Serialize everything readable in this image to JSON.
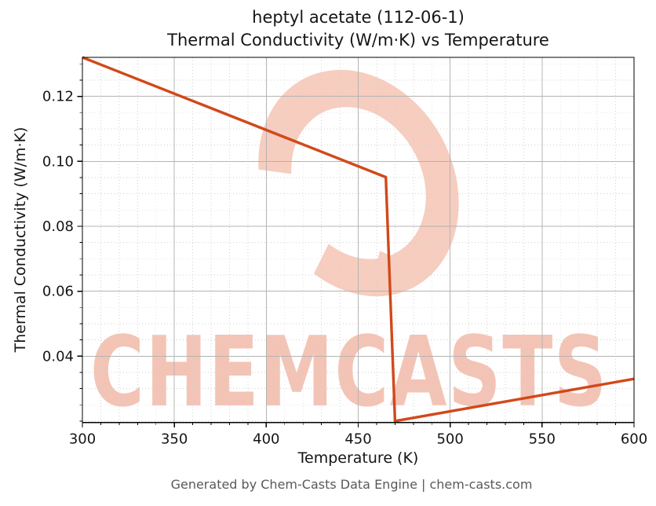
{
  "chart_data": {
    "type": "line",
    "title_line1": "heptyl acetate (112-06-1)",
    "title_line2": "Thermal Conductivity (W/m·K) vs Temperature",
    "xlabel": "Temperature (K)",
    "ylabel": "Thermal Conductivity (W/m·K)",
    "xlim": [
      300,
      600
    ],
    "ylim": [
      0.0196,
      0.132
    ],
    "x_ticks": {
      "values": [
        300,
        350,
        400,
        450,
        500,
        550,
        600
      ],
      "labels": [
        "300",
        "350",
        "400",
        "450",
        "500",
        "550",
        "600"
      ]
    },
    "x_minor_step": 10,
    "y_ticks": {
      "values": [
        0.04,
        0.06,
        0.08,
        0.1,
        0.12
      ],
      "labels": [
        "0.04",
        "0.06",
        "0.08",
        "0.10",
        "0.12"
      ]
    },
    "y_minor_step": 0.005,
    "grid": true,
    "legend": false,
    "series": [
      {
        "name": "thermal conductivity",
        "points": [
          [
            300,
            0.132
          ],
          [
            465,
            0.0951
          ],
          [
            470,
            0.02
          ],
          [
            600,
            0.033
          ]
        ]
      }
    ]
  },
  "watermark": {
    "text": "CHEMCASTS"
  },
  "footer": {
    "text": "Generated by Chem-Casts Data Engine | chem-casts.com"
  },
  "colors": {
    "line": "#d1491a",
    "grid_major": "#b4b4b4",
    "grid_minor": "#d2d2d2",
    "spine": "#000000",
    "tick": "#000000",
    "text": "#151515",
    "footer_text": "#595959",
    "watermark_logo": "#f6cdbf",
    "watermark_text": "#f3c4b5"
  }
}
